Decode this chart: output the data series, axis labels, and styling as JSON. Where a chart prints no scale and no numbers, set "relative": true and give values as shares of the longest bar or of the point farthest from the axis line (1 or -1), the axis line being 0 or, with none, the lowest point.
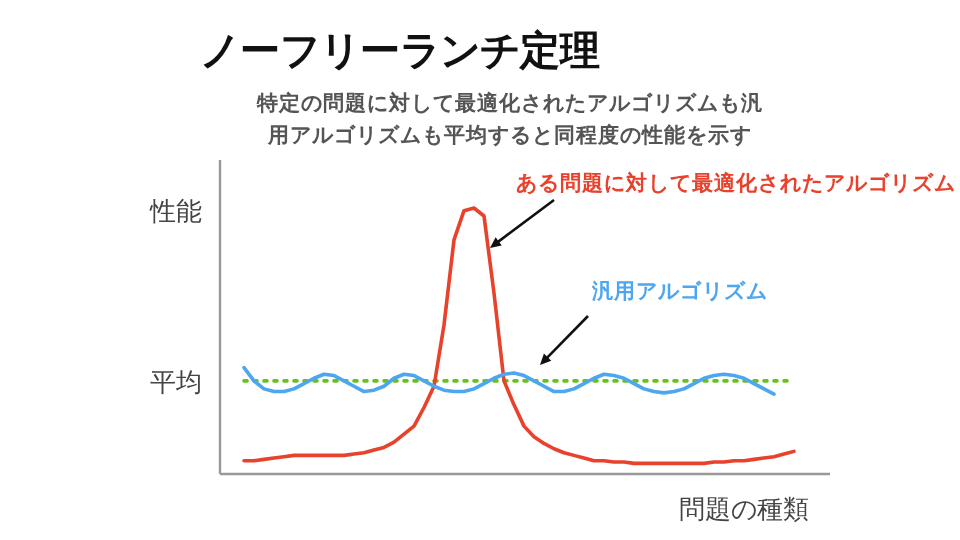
{
  "chart_data": {
    "type": "line",
    "relative": true,
    "title": "ノーフリーランチ定理",
    "subtitle": "特定の問題に対して最適化されたアルゴリズムも汎用アルゴリズムも平均すると同程度の性能を示す",
    "xlabel": "問題の種類",
    "ylabel": "性能",
    "categories": [
      null,
      null,
      null,
      null,
      null,
      null,
      null,
      null,
      null,
      null,
      null,
      null,
      null,
      null,
      null,
      null,
      null,
      null,
      null,
      null,
      null,
      null,
      null,
      null,
      null,
      null,
      null,
      null,
      null,
      null,
      null,
      null,
      null,
      null,
      null,
      null,
      null,
      null,
      null,
      null,
      null,
      null,
      null,
      null,
      null,
      null,
      null,
      null,
      null,
      null,
      null,
      null,
      null,
      null,
      null,
      null
    ],
    "series": [
      {
        "name": "ある問題に対して最適化されたアルゴリズム",
        "color": "#e8412c",
        "values": [
          0.05,
          0.05,
          0.055,
          0.06,
          0.065,
          0.07,
          0.07,
          0.07,
          0.07,
          0.07,
          0.07,
          0.075,
          0.08,
          0.09,
          0.1,
          0.12,
          0.15,
          0.18,
          0.25,
          0.33,
          0.56,
          0.88,
          0.99,
          1.0,
          0.97,
          0.68,
          0.35,
          0.26,
          0.18,
          0.14,
          0.115,
          0.095,
          0.08,
          0.07,
          0.06,
          0.05,
          0.05,
          0.045,
          0.045,
          0.04,
          0.04,
          0.04,
          0.04,
          0.04,
          0.04,
          0.04,
          0.04,
          0.045,
          0.045,
          0.05,
          0.05,
          0.055,
          0.06,
          0.065,
          0.075,
          0.085
        ]
      },
      {
        "name": "汎用アルゴリズム",
        "color": "#4da6f0",
        "values": [
          0.4,
          0.35,
          0.32,
          0.31,
          0.31,
          0.32,
          0.34,
          0.36,
          0.375,
          0.37,
          0.35,
          0.33,
          0.31,
          0.315,
          0.33,
          0.36,
          0.375,
          0.37,
          0.35,
          0.33,
          0.315,
          0.31,
          0.31,
          0.32,
          0.34,
          0.36,
          0.375,
          0.38,
          0.37,
          0.35,
          0.33,
          0.31,
          0.31,
          0.32,
          0.34,
          0.36,
          0.375,
          0.37,
          0.36,
          0.34,
          0.32,
          0.31,
          0.305,
          0.31,
          0.32,
          0.34,
          0.36,
          0.37,
          0.375,
          0.37,
          0.36,
          0.34,
          0.32,
          0.3,
          null,
          null
        ]
      }
    ],
    "ref_lines": [
      {
        "axis": "y",
        "value": 0.35,
        "label": "平均",
        "color": "#66c020",
        "line_style": "dotted"
      }
    ],
    "grid": false,
    "line_style": "solid",
    "marker": "none"
  }
}
